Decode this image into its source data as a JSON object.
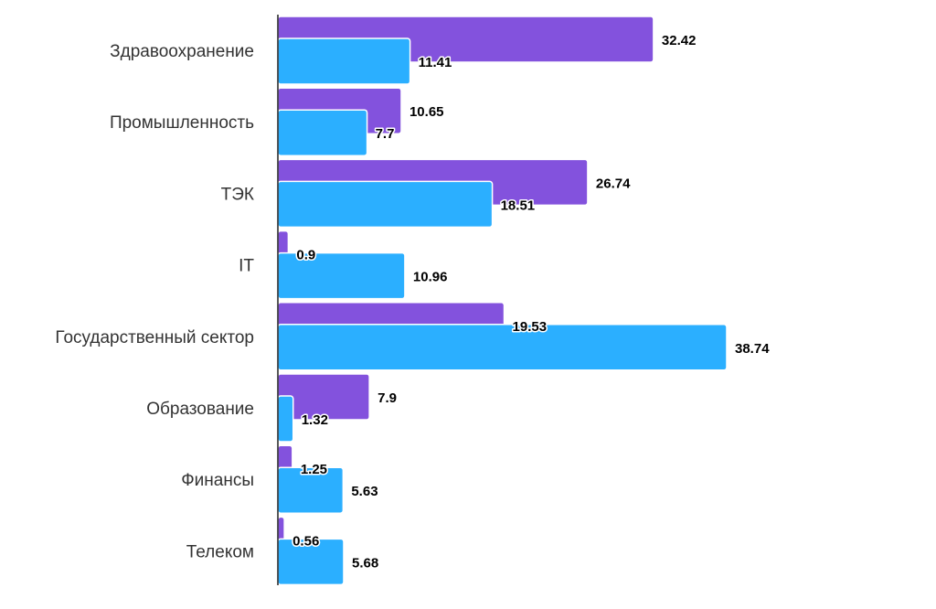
{
  "chart_data": {
    "type": "bar",
    "orientation": "horizontal",
    "categories": [
      "Здравоохранение",
      "Промышленность",
      "ТЭК",
      "IT",
      "Государственный сектор",
      "Образование",
      "Финансы",
      "Телеком"
    ],
    "series": [
      {
        "color": "#8352DD",
        "values": [
          32.42,
          10.65,
          26.74,
          0.9,
          19.53,
          7.9,
          1.25,
          0.56
        ],
        "labels": [
          "32.42",
          "10.65",
          "26.74",
          "0.9",
          "19.53",
          "7.9",
          "1.25",
          "0.56"
        ]
      },
      {
        "color": "#2BAFFF",
        "values": [
          11.41,
          7.7,
          18.51,
          10.96,
          38.74,
          1.32,
          5.63,
          5.68
        ],
        "labels": [
          "11.41",
          "7.7",
          "18.51",
          "10.96",
          "38.74",
          "1.32",
          "5.63",
          "5.68"
        ]
      }
    ],
    "xlim": [
      0,
      38.74
    ],
    "grid": false,
    "legend": "none"
  }
}
